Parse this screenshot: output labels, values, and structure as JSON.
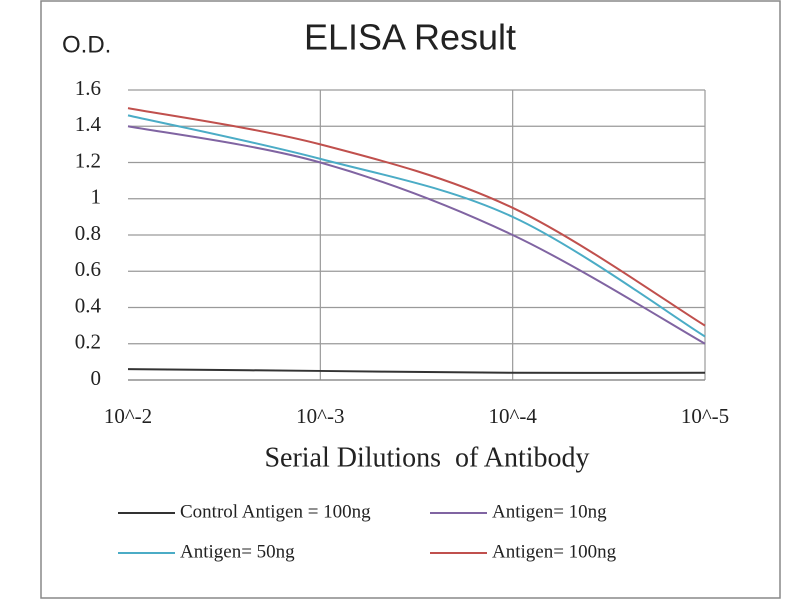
{
  "chart_data": {
    "type": "line",
    "title": "ELISA Result",
    "y_label": "O.D.",
    "x_label": "Serial Dilutions  of Antibody",
    "categories": [
      "10^-2",
      "10^-3",
      "10^-4",
      "10^-5"
    ],
    "series": [
      {
        "name": "Control Antigen = 100ng",
        "color": "#333333",
        "values": [
          0.06,
          0.05,
          0.04,
          0.04
        ]
      },
      {
        "name": "Antigen= 10ng",
        "color": "#8064a2",
        "values": [
          1.4,
          1.2,
          0.8,
          0.2
        ]
      },
      {
        "name": "Antigen= 50ng",
        "color": "#4bacc6",
        "values": [
          1.46,
          1.22,
          0.9,
          0.24
        ]
      },
      {
        "name": "Antigen= 100ng",
        "color": "#c0504d",
        "values": [
          1.5,
          1.3,
          0.95,
          0.3
        ]
      }
    ],
    "ylim": [
      0,
      1.6
    ],
    "yticks": [
      0,
      0.2,
      0.4,
      0.6,
      0.8,
      1,
      1.2,
      1.4,
      1.6
    ],
    "grid": true,
    "legend": "bottom"
  }
}
